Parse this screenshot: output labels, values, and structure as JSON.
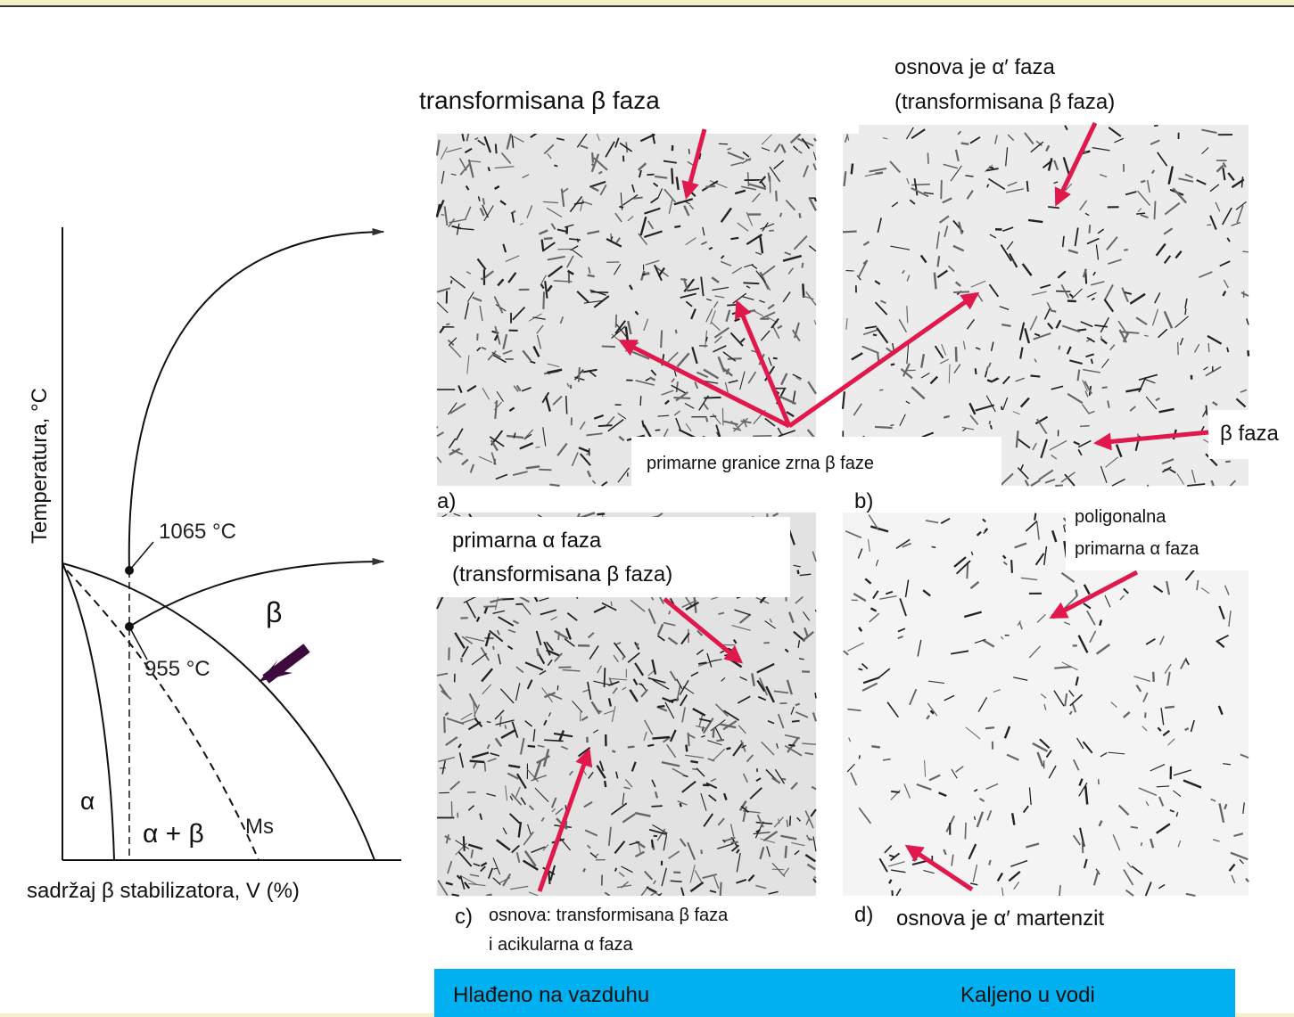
{
  "diagram": {
    "y_label": "Temperatura, °C",
    "x_label": "sadržaj β stabilizatora, V (%)",
    "temp_high": "1065 °C",
    "temp_low": "955 °C",
    "beta": "β",
    "alpha": "α",
    "alpha_beta": "α + β",
    "ms": "Ms"
  },
  "panels": [
    {
      "label": "a)",
      "annotations": [
        "transformisana β faza",
        "primarne granice zrna β faze"
      ]
    },
    {
      "label": "b)",
      "annotations": [
        "osnova je α′ faza",
        "(transformisana β faza)",
        "β faza"
      ]
    },
    {
      "label": "c)",
      "annotations": [
        "primarna α faza",
        "(transformisana β faza)",
        "osnova: transformisana β faza",
        "i acikularna α faza"
      ]
    },
    {
      "label": "d)",
      "annotations": [
        "poligonalna",
        "primarna α faza",
        "osnova je α′ martenzit"
      ]
    }
  ],
  "footer": {
    "left": "Hlađeno na vazduhu",
    "right": "Kaljeno u vodi"
  }
}
